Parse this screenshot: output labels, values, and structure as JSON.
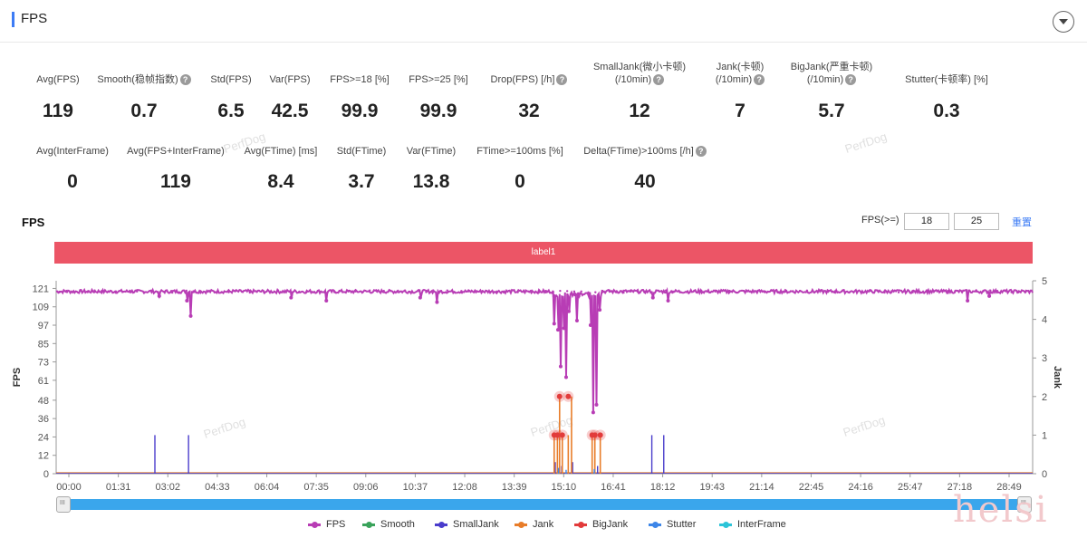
{
  "header": {
    "title": "FPS"
  },
  "stats_row1": [
    {
      "label": "Avg(FPS)",
      "value": "119",
      "help": false
    },
    {
      "label": "Smooth(稳帧指数)",
      "value": "0.7",
      "help": true
    },
    {
      "label": "Std(FPS)",
      "value": "6.5",
      "help": false
    },
    {
      "label": "Var(FPS)",
      "value": "42.5",
      "help": false
    },
    {
      "label": "FPS>=18 [%]",
      "value": "99.9",
      "help": false
    },
    {
      "label": "FPS>=25 [%]",
      "value": "99.9",
      "help": false
    },
    {
      "label": "Drop(FPS) [/h]",
      "value": "32",
      "help": true
    },
    {
      "label": "SmallJank(微小卡顿)",
      "label2": "(/10min)",
      "value": "12",
      "help": true
    },
    {
      "label": "Jank(卡顿)",
      "label2": "(/10min)",
      "value": "7",
      "help": true
    },
    {
      "label": "BigJank(严重卡顿)",
      "label2": "(/10min)",
      "value": "5.7",
      "help": true
    },
    {
      "label": "Stutter(卡顿率) [%]",
      "value": "0.3",
      "help": false
    }
  ],
  "stats_row2": [
    {
      "label": "Avg(InterFrame)",
      "value": "0",
      "help": false
    },
    {
      "label": "Avg(FPS+InterFrame)",
      "value": "119",
      "help": false
    },
    {
      "label": "Avg(FTime) [ms]",
      "value": "8.4",
      "help": false
    },
    {
      "label": "Std(FTime)",
      "value": "3.7",
      "help": false
    },
    {
      "label": "Var(FTime)",
      "value": "13.8",
      "help": false
    },
    {
      "label": "FTime>=100ms [%]",
      "value": "0",
      "help": false
    },
    {
      "label": "Delta(FTime)>100ms [/h]",
      "value": "40",
      "help": true
    }
  ],
  "chart_section": {
    "title": "FPS",
    "threshold_label": "FPS(>=)",
    "threshold_low": "18",
    "threshold_high": "25",
    "reset_label": "重置",
    "label_bar": "label1"
  },
  "watermark": "PerfDog",
  "corner_watermark": "helsi",
  "legend": [
    {
      "name": "FPS",
      "color": "#b83db5"
    },
    {
      "name": "Smooth",
      "color": "#3aa35b"
    },
    {
      "name": "SmallJank",
      "color": "#4a3dcc"
    },
    {
      "name": "Jank",
      "color": "#e87d2a"
    },
    {
      "name": "BigJank",
      "color": "#e23b3b"
    },
    {
      "name": "Stutter",
      "color": "#3d86e8"
    },
    {
      "name": "InterFrame",
      "color": "#2cc4d8"
    }
  ],
  "chart_data": {
    "type": "line",
    "title": "FPS",
    "ylabel": "FPS",
    "y2label": "Jank",
    "y_ticks": [
      0,
      12,
      24,
      36,
      48,
      61,
      73,
      85,
      97,
      109,
      121
    ],
    "y2_ticks": [
      0,
      1,
      2,
      3,
      4,
      5
    ],
    "ylim": [
      0,
      126
    ],
    "y2lim": [
      0,
      5
    ],
    "x_ticks": [
      "00:00",
      "01:31",
      "03:02",
      "04:33",
      "06:04",
      "07:35",
      "09:06",
      "10:37",
      "12:08",
      "13:39",
      "15:10",
      "16:41",
      "18:12",
      "19:43",
      "21:14",
      "22:45",
      "24:16",
      "25:47",
      "27:18",
      "28:49"
    ],
    "xlim_seconds": [
      0,
      1800
    ],
    "fps_baseline": 119,
    "fps_dips": [
      {
        "t": 190,
        "fps": 116
      },
      {
        "t": 241,
        "fps": 113
      },
      {
        "t": 248,
        "fps": 103
      },
      {
        "t": 433,
        "fps": 115
      },
      {
        "t": 498,
        "fps": 113
      },
      {
        "t": 671,
        "fps": 115
      },
      {
        "t": 702,
        "fps": 112
      },
      {
        "t": 918,
        "fps": 116
      },
      {
        "t": 918,
        "fps": 98
      },
      {
        "t": 925,
        "fps": 94
      },
      {
        "t": 930,
        "fps": 70
      },
      {
        "t": 936,
        "fps": 95
      },
      {
        "t": 940,
        "fps": 63
      },
      {
        "t": 945,
        "fps": 106
      },
      {
        "t": 957,
        "fps": 117
      },
      {
        "t": 960,
        "fps": 100
      },
      {
        "t": 963,
        "fps": 116
      },
      {
        "t": 985,
        "fps": 97
      },
      {
        "t": 990,
        "fps": 40
      },
      {
        "t": 996,
        "fps": 45
      },
      {
        "t": 1002,
        "fps": 107
      },
      {
        "t": 1100,
        "fps": 115
      },
      {
        "t": 1128,
        "fps": 113
      },
      {
        "t": 1680,
        "fps": 113
      },
      {
        "t": 1720,
        "fps": 116
      }
    ],
    "series": [
      {
        "name": "SmallJank",
        "axis": "y2",
        "points": [
          {
            "t": 182,
            "v": 1
          },
          {
            "t": 244,
            "v": 1
          },
          {
            "t": 1098,
            "v": 1
          },
          {
            "t": 1120,
            "v": 1
          },
          {
            "t": 920,
            "v": 0.3
          },
          {
            "t": 932,
            "v": 0.2
          },
          {
            "t": 952,
            "v": 0.3
          },
          {
            "t": 998,
            "v": 0.2
          }
        ]
      },
      {
        "name": "Jank",
        "axis": "y2",
        "points": [
          {
            "t": 918,
            "v": 1
          },
          {
            "t": 924,
            "v": 1
          },
          {
            "t": 928,
            "v": 2
          },
          {
            "t": 933,
            "v": 1
          },
          {
            "t": 944,
            "v": 1
          },
          {
            "t": 950,
            "v": 2
          },
          {
            "t": 988,
            "v": 1
          },
          {
            "t": 993,
            "v": 1
          },
          {
            "t": 1003,
            "v": 1
          }
        ]
      },
      {
        "name": "BigJank",
        "axis": "y2",
        "points": [
          {
            "t": 918,
            "v": 1
          },
          {
            "t": 924,
            "v": 1
          },
          {
            "t": 928,
            "v": 2
          },
          {
            "t": 933,
            "v": 1
          },
          {
            "t": 944,
            "v": 2
          },
          {
            "t": 988,
            "v": 1
          },
          {
            "t": 993,
            "v": 1
          },
          {
            "t": 1003,
            "v": 1
          }
        ]
      },
      {
        "name": "Stutter",
        "axis": "y2",
        "points": [
          {
            "t": 926,
            "v": 0.15
          },
          {
            "t": 940,
            "v": 0.1
          },
          {
            "t": 992,
            "v": 0.12
          }
        ]
      },
      {
        "name": "Smooth",
        "axis": "y2",
        "points": []
      },
      {
        "name": "InterFrame",
        "axis": "y2",
        "points": []
      }
    ]
  }
}
